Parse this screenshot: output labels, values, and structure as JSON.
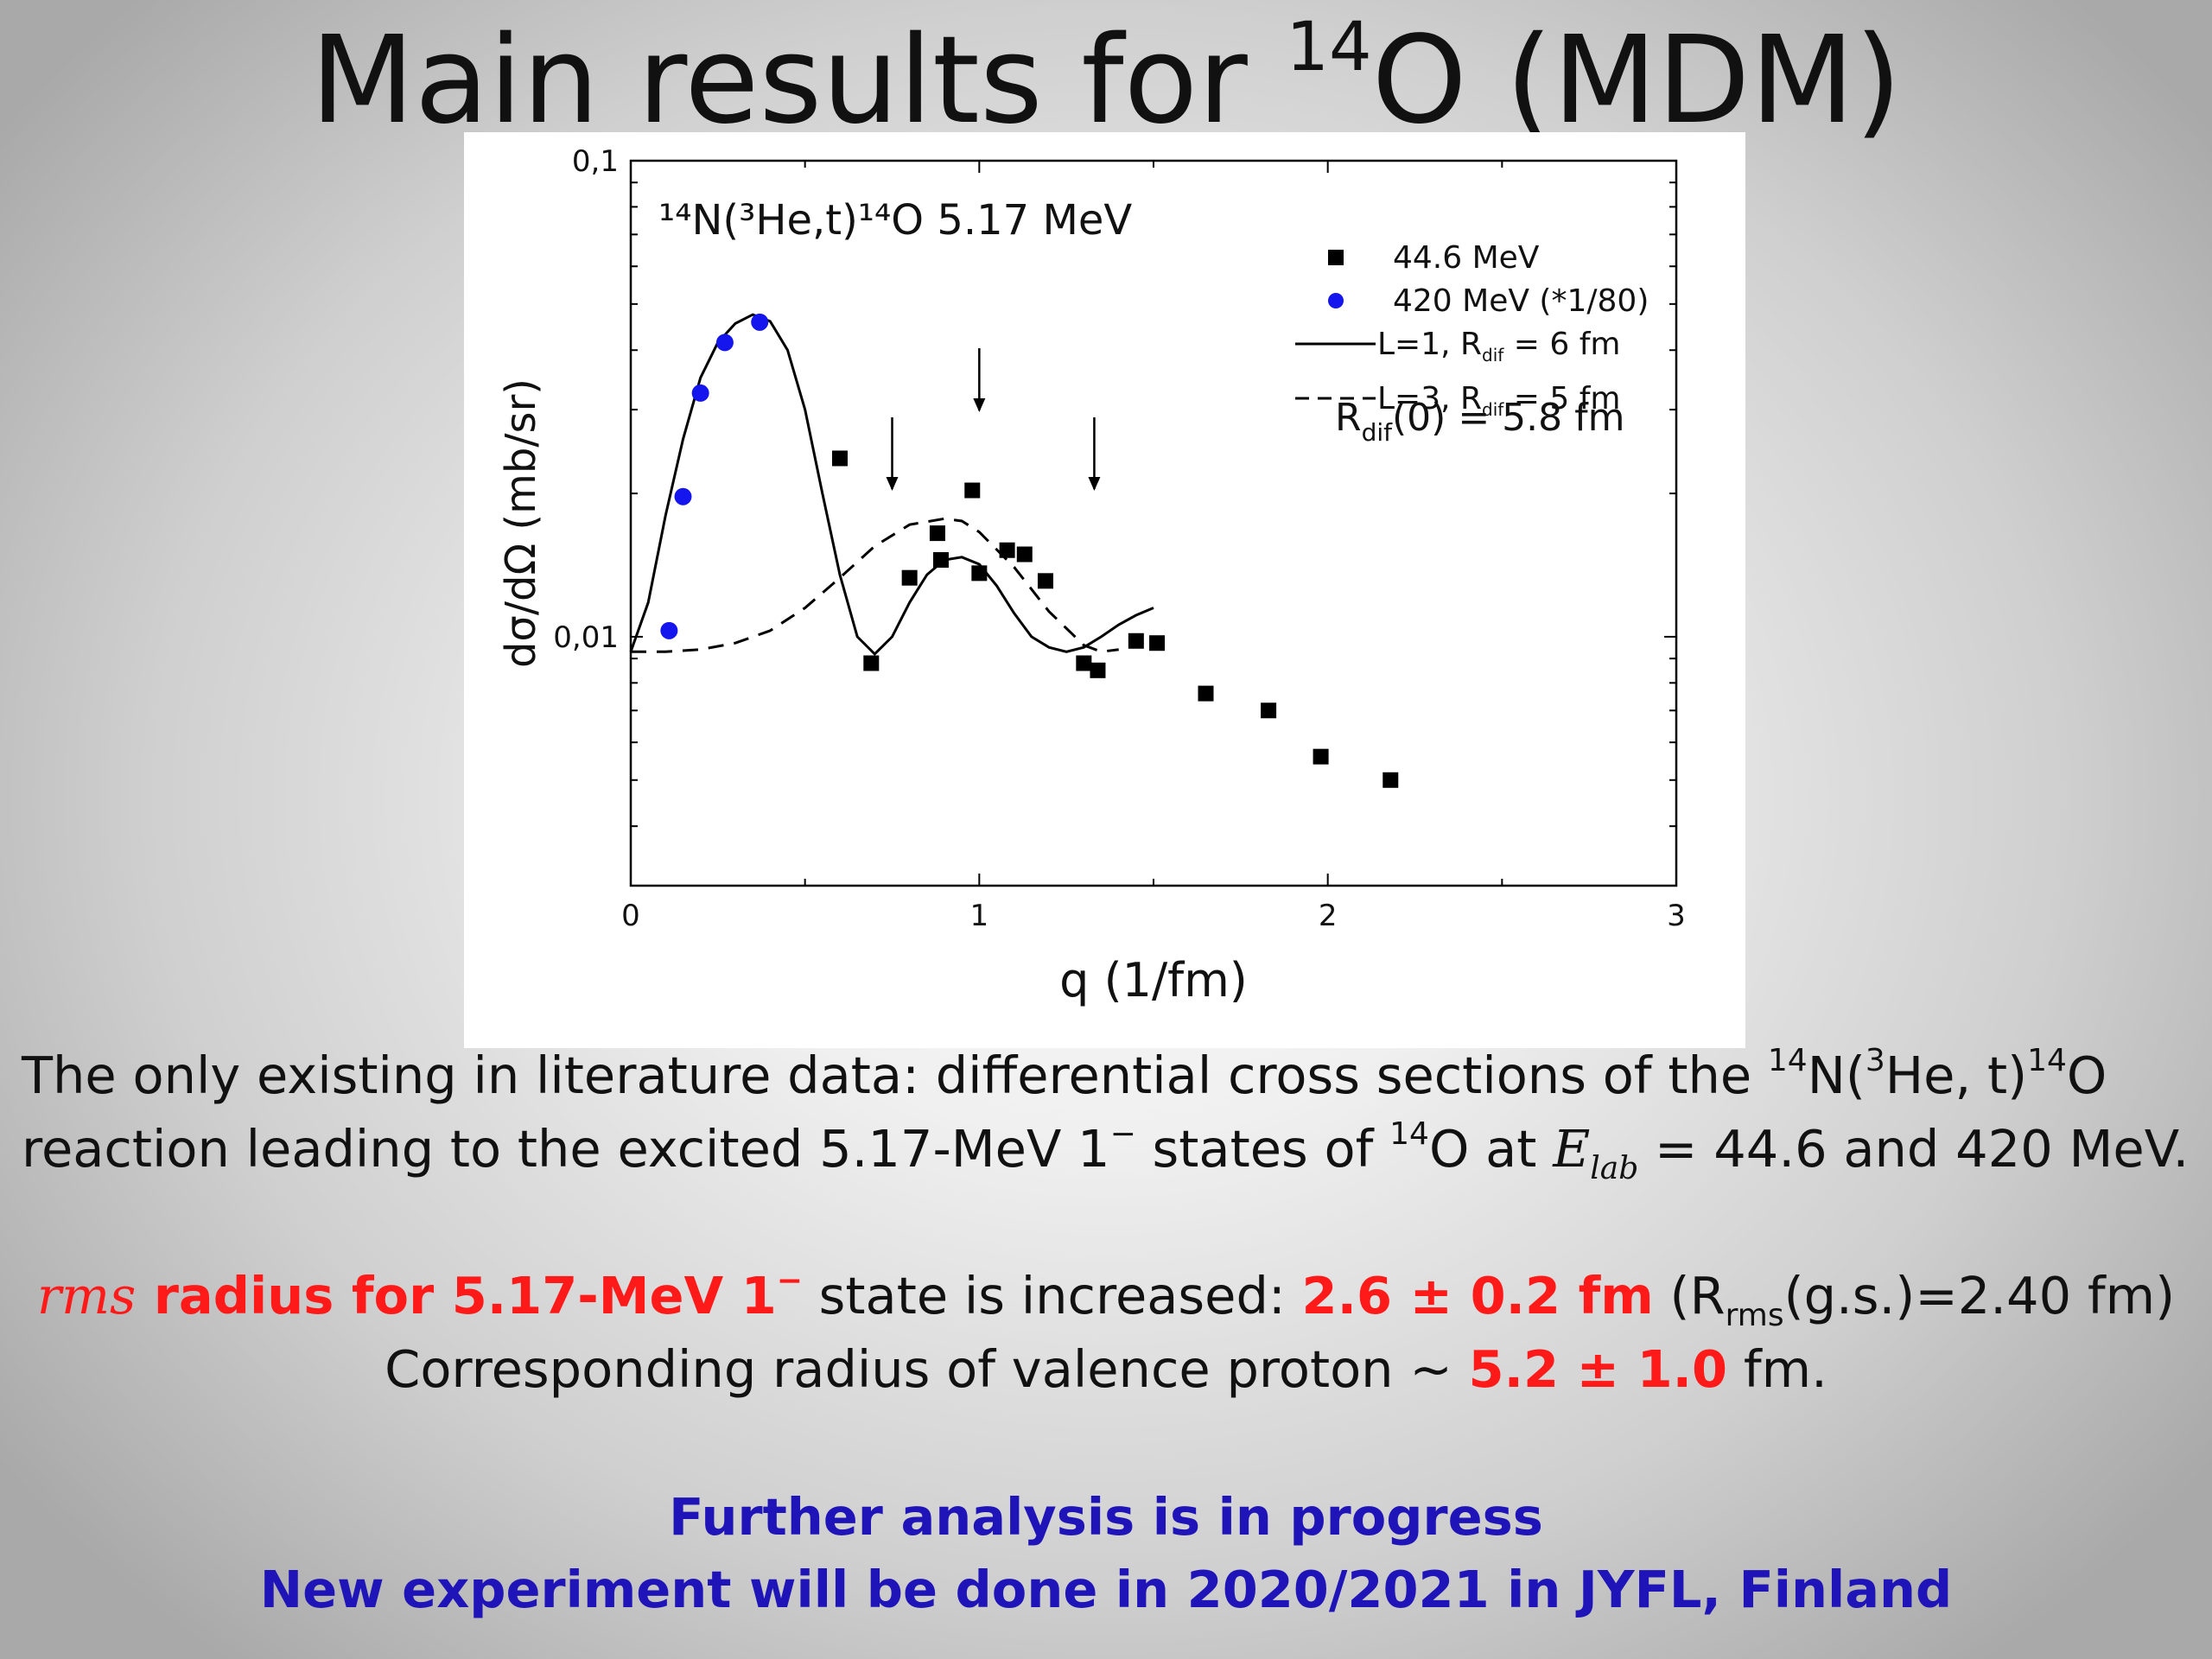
{
  "title": {
    "prefix": "Main results for ",
    "mass": "14",
    "element": "O (MDM)"
  },
  "chart_data": {
    "type": "scatter",
    "annotation": "¹⁴N(³He,t)¹⁴O 5.17 MeV",
    "xlabel": "q (1/fm)",
    "ylabel": "dσ/dΩ (mb/sr)",
    "xlim": [
      0,
      3
    ],
    "ylim": [
      0.003,
      0.1
    ],
    "yscale": "log",
    "x_ticks": [
      "0",
      "1",
      "2",
      "3"
    ],
    "x_tick_values": [
      0,
      1,
      2,
      3
    ],
    "y_ticks": [
      "0,1",
      "0,01"
    ],
    "y_tick_values": [
      0.1,
      0.01
    ],
    "legend_position": "top-right",
    "rdif_note": {
      "base": "R",
      "sub": "dif",
      "rest": "(0) = 5.8 fm"
    },
    "series": [
      {
        "name": "44.6 MeV",
        "marker": "square",
        "color": "#000000",
        "x": [
          0.6,
          0.69,
          0.8,
          0.88,
          0.89,
          0.98,
          1.0,
          1.08,
          1.13,
          1.19,
          1.3,
          1.34,
          1.45,
          1.51,
          1.65,
          1.83,
          1.98,
          2.18
        ],
        "y": [
          0.0237,
          0.0088,
          0.0133,
          0.0165,
          0.0145,
          0.0203,
          0.0136,
          0.0152,
          0.0149,
          0.0131,
          0.0088,
          0.0085,
          0.0098,
          0.0097,
          0.0076,
          0.007,
          0.0056,
          0.005
        ]
      },
      {
        "name": "420 MeV (*1/80)",
        "marker": "circle",
        "color": "#1515ee",
        "x": [
          0.11,
          0.15,
          0.2,
          0.27,
          0.37
        ],
        "y": [
          0.0103,
          0.0197,
          0.0325,
          0.0415,
          0.0458
        ]
      },
      {
        "name": "L=1, R",
        "name_sub": "dif",
        "name_rest": " = 6 fm",
        "line": "solid",
        "x": [
          0,
          0.05,
          0.1,
          0.15,
          0.2,
          0.25,
          0.3,
          0.35,
          0.4,
          0.45,
          0.5,
          0.55,
          0.6,
          0.65,
          0.7,
          0.75,
          0.8,
          0.85,
          0.9,
          0.95,
          1.0,
          1.05,
          1.1,
          1.15,
          1.2,
          1.25,
          1.3,
          1.35,
          1.4,
          1.45,
          1.5
        ],
        "y": [
          0.0093,
          0.0118,
          0.018,
          0.026,
          0.035,
          0.0415,
          0.0455,
          0.0475,
          0.046,
          0.04,
          0.03,
          0.02,
          0.0135,
          0.01,
          0.0092,
          0.01,
          0.0118,
          0.0135,
          0.0145,
          0.0147,
          0.0142,
          0.0128,
          0.0112,
          0.01,
          0.0095,
          0.0093,
          0.0095,
          0.01,
          0.0106,
          0.0111,
          0.0115
        ]
      },
      {
        "name": "L=3, R",
        "name_sub": "dif",
        "name_rest": " = 5 fm",
        "line": "dashed",
        "x": [
          0,
          0.1,
          0.2,
          0.3,
          0.4,
          0.5,
          0.6,
          0.7,
          0.8,
          0.9,
          0.95,
          1.0,
          1.1,
          1.2,
          1.3,
          1.35,
          1.4
        ],
        "y": [
          0.0093,
          0.0093,
          0.0094,
          0.0097,
          0.0103,
          0.0115,
          0.0133,
          0.0155,
          0.0172,
          0.0177,
          0.0175,
          0.0166,
          0.014,
          0.0113,
          0.0096,
          0.0093,
          0.0094
        ]
      }
    ],
    "arrows_at_q": [
      0.75,
      1.0,
      1.33
    ],
    "grid": false
  },
  "text": {
    "p1_l1": {
      "a": "The only existing in literature data: differential cross sections of the ",
      "s1": "14",
      "b": "N(",
      "s2": "3",
      "c": "He, t)",
      "s3": "14",
      "d": "O"
    },
    "p1_l2": {
      "a": "reaction leading to the excited 5.17-MeV 1",
      "s1": "−",
      "b": " states of ",
      "s2": "14",
      "c": "O at ",
      "math": "E",
      "math_sub": "lab",
      "d": " = 44.6 and 420 MeV."
    },
    "p2_l1": {
      "rms": "rms",
      "red_a": " radius for 5.17-MeV 1",
      "red_sup": "−",
      "plain": " state is increased: ",
      "red_b": "2.6 ± 0.2 fm",
      "c": " (R",
      "sub": "rms",
      "d": "(g.s.)=2.40 fm)"
    },
    "p2_l2": {
      "a": "Corresponding radius of valence proton ~ ",
      "red": "5.2 ± 1.0",
      "b": " fm."
    },
    "p3_l1": "Further analysis is in progress",
    "p3_l2": "New experiment will be done in 2020/2021 in JYFL, Finland"
  }
}
